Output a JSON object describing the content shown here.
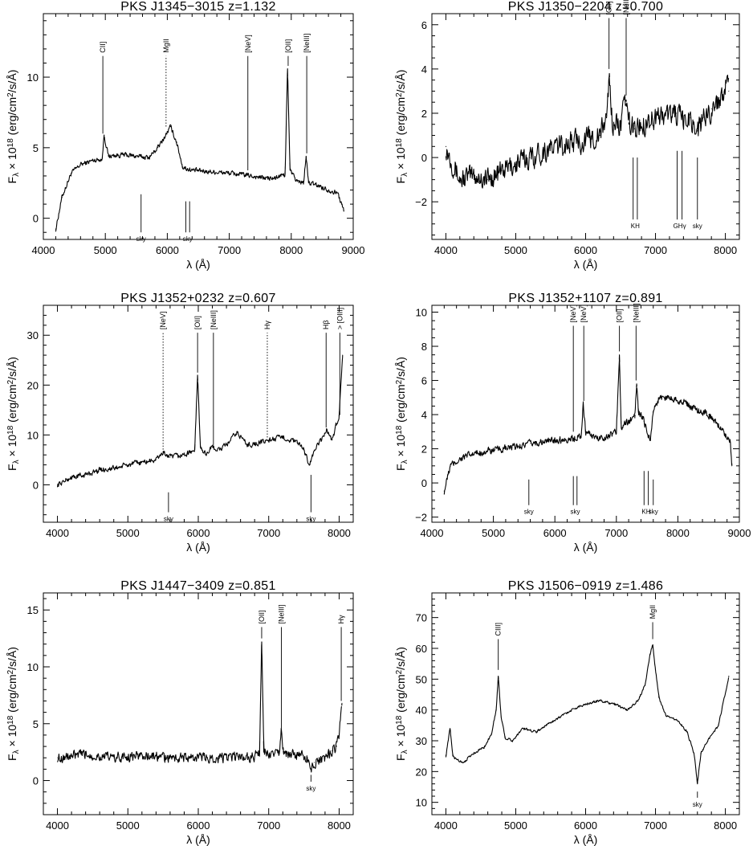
{
  "chart_data": [
    {
      "type": "line",
      "title": "PKS J1345−3015",
      "redshift": "z=1.132",
      "xlabel": "λ (Å)",
      "ylabel": "F_λ × 10^18 (erg/cm²/s/Å)",
      "xlim": [
        4000,
        9000
      ],
      "ylim": [
        -1.5,
        14.5
      ],
      "xticks": [
        4000,
        5000,
        6000,
        7000,
        8000,
        9000
      ],
      "yticks": [
        0,
        5,
        10
      ],
      "series": [
        {
          "x": [
            4200,
            4300,
            4450,
            4600,
            4800,
            4950,
            4980,
            5050,
            5300,
            5500,
            5700,
            5850,
            5950,
            6050,
            6150,
            6250,
            6400,
            6700,
            7000,
            7200,
            7500,
            7700,
            7900,
            7940,
            7980,
            8100,
            8200,
            8240,
            8280,
            8450,
            8600,
            8750,
            8850
          ],
          "y": [
            -0.8,
            1.5,
            3.2,
            3.8,
            4.1,
            4.2,
            5.9,
            4.4,
            4.5,
            4.4,
            4.3,
            5.0,
            5.7,
            6.5,
            5.4,
            3.6,
            3.4,
            3.3,
            3.2,
            3.1,
            2.9,
            2.8,
            3.1,
            10.6,
            3.4,
            2.6,
            2.5,
            4.4,
            2.5,
            2.3,
            2.0,
            1.8,
            0.5
          ],
          "noise": 0.25
        }
      ],
      "lines": [
        {
          "label": "CII]",
          "x": 4960,
          "y0": 6.0,
          "y1": 11.5,
          "style": "solid"
        },
        {
          "label": "MgII",
          "x": 5980,
          "y0": 6.5,
          "y1": 11.5,
          "style": "dotted"
        },
        {
          "label": "[NeV]",
          "x": 7300,
          "y0": 3.4,
          "y1": 11.5,
          "style": "solid"
        },
        {
          "label": "[OII]",
          "x": 7950,
          "y0": 10.8,
          "y1": 11.5,
          "style": "solid"
        },
        {
          "label": "[NeIII]",
          "x": 8250,
          "y0": 4.6,
          "y1": 11.5,
          "style": "solid"
        }
      ],
      "sky": [
        {
          "label": "sky",
          "x": [
            5577
          ],
          "y0": 1.7,
          "y1": -1.0
        },
        {
          "label": "sky",
          "x": [
            6300,
            6360
          ],
          "y0": 1.2,
          "y1": -1.0
        }
      ]
    },
    {
      "type": "line",
      "title": "PKS J1350−2204",
      "redshift": "z=0.700",
      "xlabel": "λ (Å)",
      "ylabel": "F_λ × 10^18 (erg/cm²/s/Å)",
      "xlim": [
        3800,
        8200
      ],
      "ylim": [
        -3.7,
        6.5
      ],
      "xticks": [
        4000,
        5000,
        6000,
        7000,
        8000
      ],
      "yticks": [
        -2,
        0,
        2,
        4,
        6
      ],
      "series": [
        {
          "x": [
            4000,
            4200,
            4400,
            4600,
            4800,
            5000,
            5200,
            5400,
            5600,
            5800,
            6000,
            6200,
            6300,
            6340,
            6380,
            6500,
            6580,
            6620,
            6700,
            6900,
            7100,
            7300,
            7400,
            7500,
            7600,
            7700,
            7800,
            7900,
            8000,
            8050
          ],
          "y": [
            0.5,
            -1.0,
            -0.8,
            -1.0,
            -0.6,
            -0.3,
            0.0,
            0.3,
            0.5,
            0.7,
            0.8,
            1.0,
            1.8,
            3.8,
            1.6,
            1.5,
            2.6,
            1.5,
            1.3,
            1.7,
            1.9,
            2.0,
            1.6,
            1.8,
            1.2,
            1.8,
            2.2,
            2.5,
            3.3,
            3.0
          ],
          "noise": 0.75
        }
      ],
      "lines": [
        {
          "label": "[OII]",
          "x": 6335,
          "y0": 4.0,
          "y1": 6.3,
          "style": "solid"
        },
        {
          "label": "[NeIII]",
          "x": 6580,
          "y0": 2.8,
          "y1": 6.3,
          "style": "solid"
        }
      ],
      "sky": [
        {
          "label": "KH",
          "x": [
            6680,
            6740
          ],
          "y0": 0.0,
          "y1": -2.8
        },
        {
          "label": "GHγ",
          "x": [
            7310,
            7380
          ],
          "y0": 0.3,
          "y1": -2.8
        },
        {
          "label": "sky",
          "x": [
            7600
          ],
          "y0": 0.0,
          "y1": -2.8
        }
      ]
    },
    {
      "type": "line",
      "title": "PKS J1352+0232",
      "redshift": "z=0.607",
      "xlabel": "λ (Å)",
      "ylabel": "F_λ × 10^18 (erg/cm²/s/Å)",
      "xlim": [
        3800,
        8200
      ],
      "ylim": [
        -7.5,
        36
      ],
      "xticks": [
        4000,
        5000,
        6000,
        7000,
        8000
      ],
      "yticks": [
        0,
        10,
        20,
        30
      ],
      "series": [
        {
          "x": [
            4000,
            4200,
            4400,
            4600,
            4800,
            5000,
            5200,
            5400,
            5500,
            5600,
            5800,
            5950,
            5990,
            6030,
            6100,
            6200,
            6300,
            6400,
            6550,
            6700,
            6900,
            7000,
            7200,
            7400,
            7500,
            7580,
            7650,
            7750,
            7820,
            7900,
            7960,
            8000,
            8050
          ],
          "y": [
            0.0,
            1.5,
            2.0,
            3.0,
            3.3,
            4.0,
            4.5,
            5.0,
            6.5,
            5.5,
            6.0,
            7.0,
            22.0,
            7.5,
            6.2,
            7.5,
            7.0,
            8.0,
            10.5,
            8.0,
            8.5,
            9.0,
            9.5,
            8.5,
            7.0,
            4.0,
            7.0,
            9.0,
            11.0,
            9.0,
            12.0,
            14.0,
            26.0
          ],
          "noise": 0.8
        }
      ],
      "lines": [
        {
          "label": "[NeV]",
          "x": 5500,
          "y0": 6.5,
          "y1": 30.5,
          "style": "dotted"
        },
        {
          "label": "[OII]",
          "x": 5990,
          "y0": 22.5,
          "y1": 30.5,
          "style": "solid"
        },
        {
          "label": "[NeIII]",
          "x": 6215,
          "y0": 8.0,
          "y1": 30.5,
          "style": "solid"
        },
        {
          "label": "Hγ",
          "x": 6980,
          "y0": 9.5,
          "y1": 30.5,
          "style": "dotted"
        },
        {
          "label": "Hβ",
          "x": 7815,
          "y0": 11.5,
          "y1": 30.5,
          "style": "solid"
        },
        {
          "label": "> [OIII]",
          "x": 8010,
          "y0": 14.0,
          "y1": 30.5,
          "style": "solid"
        }
      ],
      "sky": [
        {
          "label": "sky",
          "x": [
            5577
          ],
          "y0": -1.5,
          "y1": -5.5
        },
        {
          "label": "sky",
          "x": [
            7600
          ],
          "y0": 2.0,
          "y1": -5.5
        }
      ]
    },
    {
      "type": "line",
      "title": "PKS J1352+1107",
      "redshift": "z=0.891",
      "xlabel": "λ (Å)",
      "ylabel": "F_λ × 10^18 (erg/cm²/s/Å)",
      "xlim": [
        4000,
        9000
      ],
      "ylim": [
        -2.3,
        10.4
      ],
      "xticks": [
        4000,
        5000,
        6000,
        7000,
        8000,
        9000
      ],
      "yticks": [
        -2,
        0,
        2,
        4,
        6,
        8,
        10
      ],
      "series": [
        {
          "x": [
            4200,
            4300,
            4500,
            4800,
            5200,
            5600,
            6000,
            6300,
            6430,
            6460,
            6500,
            6700,
            6900,
            7000,
            7050,
            7080,
            7150,
            7300,
            7330,
            7360,
            7450,
            7550,
            7600,
            7700,
            7900,
            8100,
            8300,
            8500,
            8700,
            8850,
            8880
          ],
          "y": [
            -0.5,
            1.0,
            1.5,
            1.8,
            2.0,
            2.3,
            2.5,
            2.6,
            2.8,
            4.6,
            3.0,
            2.6,
            2.8,
            3.0,
            7.5,
            3.2,
            3.5,
            3.8,
            5.8,
            4.2,
            3.6,
            2.5,
            4.2,
            5.0,
            5.0,
            4.7,
            4.3,
            4.0,
            3.2,
            2.5,
            1.0
          ],
          "noise": 0.3
        }
      ],
      "lines": [
        {
          "label": "[NeV]",
          "x": 6300,
          "y0": 3.0,
          "y1": 9.2,
          "style": "solid"
        },
        {
          "label": "[NeV]",
          "x": 6470,
          "y0": 4.8,
          "y1": 9.2,
          "style": "solid"
        },
        {
          "label": "[OII]",
          "x": 7050,
          "y0": 7.7,
          "y1": 9.2,
          "style": "solid"
        },
        {
          "label": "[NeIII]",
          "x": 7320,
          "y0": 6.0,
          "y1": 9.2,
          "style": "solid"
        }
      ],
      "sky": [
        {
          "label": "sky",
          "x": [
            5577
          ],
          "y0": 0.2,
          "y1": -1.3
        },
        {
          "label": "sky",
          "x": [
            6300,
            6360
          ],
          "y0": 0.4,
          "y1": -1.3
        },
        {
          "label": "KH",
          "x": [
            7450,
            7520
          ],
          "y0": 0.7,
          "y1": -1.3
        },
        {
          "label": "sky",
          "x": [
            7600
          ],
          "y0": 0.2,
          "y1": -1.3
        }
      ]
    },
    {
      "type": "line",
      "title": "PKS J1447−3409",
      "redshift": "z=0.851",
      "xlabel": "λ (Å)",
      "ylabel": "F_λ × 10^18 (erg/cm²/s/Å)",
      "xlim": [
        3800,
        8200
      ],
      "ylim": [
        -3.0,
        16.5
      ],
      "xticks": [
        4000,
        5000,
        6000,
        7000,
        8000
      ],
      "yticks": [
        0,
        5,
        10,
        15
      ],
      "series": [
        {
          "x": [
            4000,
            4400,
            4800,
            5200,
            5600,
            6000,
            6400,
            6800,
            6870,
            6900,
            6930,
            7000,
            7150,
            7180,
            7210,
            7400,
            7550,
            7600,
            7650,
            7800,
            7900,
            7960,
            8000,
            8040
          ],
          "y": [
            2.0,
            2.3,
            2.0,
            2.2,
            2.0,
            2.0,
            2.0,
            2.1,
            2.5,
            12.2,
            2.5,
            2.3,
            2.4,
            4.4,
            2.4,
            2.2,
            2.0,
            1.0,
            1.6,
            2.0,
            2.6,
            3.0,
            4.0,
            6.8
          ],
          "noise": 0.65
        }
      ],
      "lines": [
        {
          "label": "[OII]",
          "x": 6900,
          "y0": 12.5,
          "y1": 13.5,
          "style": "solid"
        },
        {
          "label": "[NeIII]",
          "x": 7180,
          "y0": 4.6,
          "y1": 13.5,
          "style": "solid"
        },
        {
          "label": "Hγ",
          "x": 8030,
          "y0": 7.0,
          "y1": 13.5,
          "style": "solid"
        }
      ],
      "sky": [
        {
          "label": "sky",
          "x": [
            7600
          ],
          "y0": 0.5,
          "y1": -0.1
        }
      ]
    },
    {
      "type": "line",
      "title": "PKS J1506−0919",
      "redshift": "z=1.486",
      "xlabel": "λ (Å)",
      "ylabel": "F_λ × 10^18 (erg/cm²/s/Å)",
      "xlim": [
        3800,
        8200
      ],
      "ylim": [
        6,
        78
      ],
      "xticks": [
        4000,
        5000,
        6000,
        7000,
        8000
      ],
      "yticks": [
        10,
        20,
        30,
        40,
        50,
        60,
        70
      ],
      "series": [
        {
          "x": [
            4000,
            4060,
            4100,
            4150,
            4250,
            4400,
            4550,
            4650,
            4720,
            4750,
            4790,
            4850,
            4950,
            5100,
            5300,
            5500,
            5800,
            6000,
            6200,
            6400,
            6600,
            6750,
            6850,
            6920,
            6960,
            7000,
            7050,
            7150,
            7300,
            7450,
            7550,
            7600,
            7650,
            7750,
            7900,
            8050
          ],
          "y": [
            25.0,
            34.0,
            25.0,
            24.0,
            23.0,
            26.0,
            28.0,
            32.0,
            40.0,
            51.0,
            38.0,
            31.0,
            30.0,
            34.0,
            33.0,
            36.0,
            40.0,
            42.0,
            43.0,
            42.0,
            40.0,
            43.0,
            48.0,
            58.0,
            61.0,
            53.0,
            44.0,
            38.0,
            37.0,
            33.0,
            26.0,
            16.0,
            26.0,
            30.0,
            35.0,
            51.0
          ],
          "noise": 0.6
        }
      ],
      "lines": [
        {
          "label": "CIII]",
          "x": 4750,
          "y0": 53.0,
          "y1": 63.0,
          "style": "solid"
        },
        {
          "label": "MgII",
          "x": 6960,
          "y0": 63.0,
          "y1": 68.5,
          "style": "solid"
        }
      ],
      "sky": [
        {
          "label": "sky",
          "x": [
            7600
          ],
          "y0": 13.5,
          "y1": 11.5
        }
      ]
    }
  ]
}
